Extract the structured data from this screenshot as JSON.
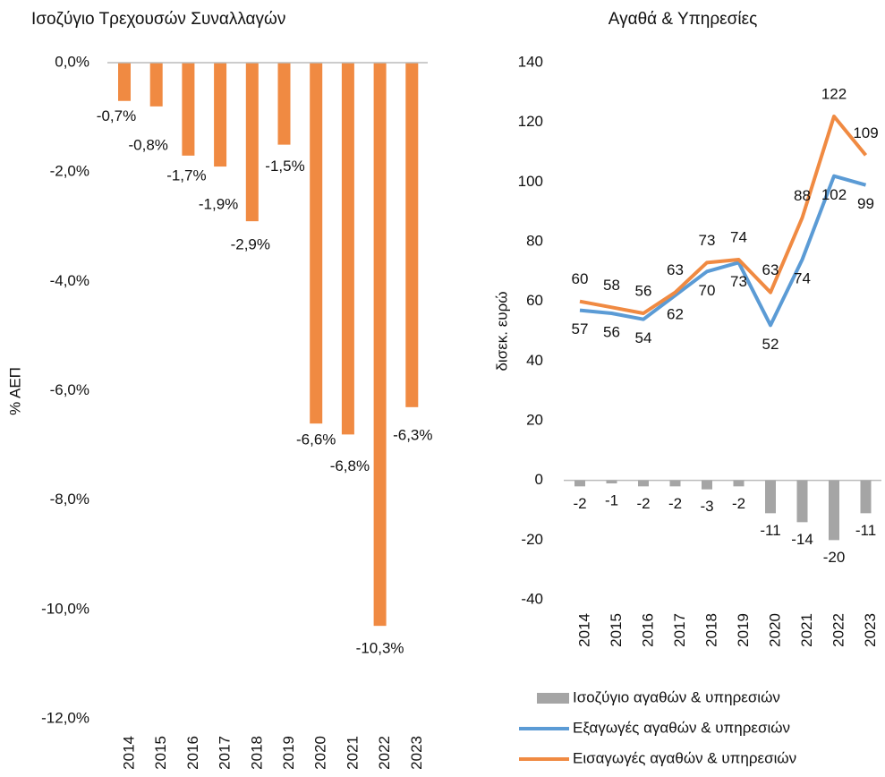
{
  "chart_data": [
    {
      "type": "bar",
      "title": "Ισοζύγιο Τρεχουσών Συναλλαγών",
      "ylabel": "% ΑΕΠ",
      "categories": [
        "2014",
        "2015",
        "2016",
        "2017",
        "2018",
        "2019",
        "2020",
        "2021",
        "2022",
        "2023"
      ],
      "values": [
        -0.7,
        -0.8,
        -1.7,
        -1.9,
        -2.9,
        -1.5,
        -6.6,
        -6.8,
        -10.3,
        -6.3
      ],
      "value_labels": [
        "-0,7%",
        "-0,8%",
        "-1,7%",
        "-1,9%",
        "-2,9%",
        "-1,5%",
        "-6,6%",
        "-6,8%",
        "-10,3%",
        "-6,3%"
      ],
      "color": "#f08a42",
      "ylim": [
        -12,
        0
      ],
      "yticks": [
        {
          "value": 0,
          "label": "0,0%"
        },
        {
          "value": -2,
          "label": "-2,0%"
        },
        {
          "value": -4,
          "label": "-4,0%"
        },
        {
          "value": -6,
          "label": "-6,0%"
        },
        {
          "value": -8,
          "label": "-8,0%"
        },
        {
          "value": -10,
          "label": "-10,0%"
        },
        {
          "value": -12,
          "label": "-12,0%"
        }
      ]
    },
    {
      "type": "line",
      "title": "Αγαθά & Υπηρεσίες",
      "ylabel": "δισεκ. ευρώ",
      "categories": [
        "2014",
        "2015",
        "2016",
        "2017",
        "2018",
        "2019",
        "2020",
        "2021",
        "2022",
        "2023"
      ],
      "series": [
        {
          "name": "Ισοζύγιο αγαθών & υπηρεσιών",
          "type": "bar",
          "color": "#a5a5a5",
          "values": [
            -2,
            -1,
            -2,
            -2,
            -3,
            -2,
            -11,
            -14,
            -20,
            -11
          ]
        },
        {
          "name": "Εξαγωγές αγαθών & υπηρεσιών",
          "type": "line",
          "color": "#5b9bd5",
          "values": [
            57,
            56,
            54,
            62,
            70,
            73,
            52,
            74,
            102,
            99
          ]
        },
        {
          "name": "Εισαγωγές αγαθών & υπηρεσιών",
          "type": "line",
          "color": "#f08a42",
          "values": [
            60,
            58,
            56,
            63,
            73,
            74,
            63,
            88,
            122,
            109
          ]
        }
      ],
      "ylim": [
        -40,
        140
      ],
      "yticks": [
        -40,
        -20,
        0,
        20,
        40,
        60,
        80,
        100,
        120,
        140
      ]
    }
  ]
}
